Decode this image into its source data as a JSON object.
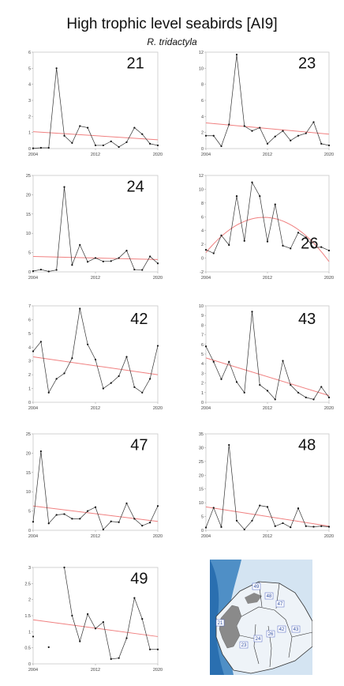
{
  "title": "High trophic level seabirds [AI9]",
  "subtitle": "R. tridactyla",
  "colors": {
    "data_line": "#333333",
    "trend_line": "#f08080",
    "axis": "#c8c8c8"
  },
  "chart_data": [
    {
      "type": "line",
      "label": "21",
      "x": [
        2004,
        2005,
        2006,
        2007,
        2008,
        2009,
        2010,
        2011,
        2012,
        2013,
        2014,
        2015,
        2016,
        2017,
        2018,
        2019,
        2020
      ],
      "values": [
        0.02,
        0.05,
        0.05,
        5.0,
        0.8,
        0.35,
        1.4,
        1.3,
        0.2,
        0.2,
        0.45,
        0.1,
        0.4,
        1.3,
        0.9,
        0.3,
        0.2
      ],
      "ylim": [
        0,
        6
      ],
      "yticks": [
        0,
        1,
        2,
        3,
        4,
        5,
        6
      ],
      "xticks": [
        2004,
        2012,
        2020
      ],
      "trend": "linear",
      "trend_ends": [
        1.05,
        0.55
      ]
    },
    {
      "type": "line",
      "label": "23",
      "x": [
        2004,
        2005,
        2006,
        2007,
        2008,
        2009,
        2010,
        2011,
        2012,
        2013,
        2014,
        2015,
        2016,
        2017,
        2018,
        2019,
        2020
      ],
      "values": [
        1.6,
        1.6,
        0.3,
        3.0,
        11.7,
        2.8,
        2.2,
        2.6,
        0.6,
        1.5,
        2.2,
        1.0,
        1.6,
        1.9,
        3.3,
        0.6,
        0.4
      ],
      "ylim": [
        0,
        12
      ],
      "yticks": [
        0,
        2,
        4,
        6,
        8,
        10,
        12
      ],
      "xticks": [
        2004,
        2012,
        2020
      ],
      "trend": "linear",
      "trend_ends": [
        3.2,
        1.8
      ]
    },
    {
      "type": "line",
      "label": "24",
      "x": [
        2004,
        2005,
        2006,
        2007,
        2008,
        2009,
        2010,
        2011,
        2012,
        2013,
        2014,
        2015,
        2016,
        2017,
        2018,
        2019,
        2020
      ],
      "values": [
        0.2,
        0.6,
        0.1,
        0.5,
        22.0,
        1.8,
        7.0,
        2.6,
        3.6,
        2.7,
        2.8,
        3.6,
        5.5,
        0.6,
        0.5,
        4.0,
        2.2
      ],
      "ylim": [
        0,
        25
      ],
      "yticks": [
        0,
        5,
        10,
        15,
        20,
        25
      ],
      "xticks": [
        2004,
        2012,
        2020
      ],
      "trend": "linear",
      "trend_ends": [
        4.0,
        3.2
      ]
    },
    {
      "type": "line",
      "label": "26",
      "x": [
        2004,
        2005,
        2006,
        2007,
        2008,
        2009,
        2010,
        2011,
        2012,
        2013,
        2014,
        2015,
        2016,
        2017,
        2018,
        2019,
        2020
      ],
      "values": [
        1.2,
        0.7,
        3.3,
        1.9,
        9.0,
        2.5,
        11.0,
        9.0,
        2.4,
        7.8,
        1.8,
        1.4,
        3.7,
        3.0,
        1.5,
        1.6,
        1.1
      ],
      "ylim": [
        -2,
        12
      ],
      "yticks": [
        -2,
        0,
        2,
        4,
        6,
        8,
        10,
        12
      ],
      "xticks": [
        2004,
        2012,
        2020
      ],
      "trend": "quadratic",
      "trend_quad": [
        0.8,
        5.9,
        -0.5
      ]
    },
    {
      "type": "line",
      "label": "42",
      "x": [
        2004,
        2005,
        2006,
        2007,
        2008,
        2009,
        2010,
        2011,
        2012,
        2013,
        2014,
        2015,
        2016,
        2017,
        2018,
        2019,
        2020
      ],
      "values": [
        3.7,
        4.4,
        0.7,
        1.7,
        2.1,
        3.2,
        6.8,
        4.2,
        3.1,
        1.0,
        1.4,
        1.9,
        3.3,
        1.1,
        0.7,
        1.7,
        4.1
      ],
      "ylim": [
        0,
        7
      ],
      "yticks": [
        0,
        1,
        2,
        3,
        4,
        5,
        6,
        7
      ],
      "xticks": [
        2004,
        2012,
        2020
      ],
      "trend": "linear",
      "trend_ends": [
        3.3,
        2.0
      ]
    },
    {
      "type": "line",
      "label": "43",
      "x": [
        2004,
        2005,
        2006,
        2007,
        2008,
        2009,
        2010,
        2011,
        2012,
        2013,
        2014,
        2015,
        2016,
        2017,
        2018,
        2019,
        2020
      ],
      "values": [
        5.8,
        4.2,
        2.4,
        4.2,
        2.1,
        1.0,
        9.4,
        1.8,
        1.2,
        0.3,
        4.3,
        1.8,
        1.0,
        0.5,
        0.3,
        1.6,
        0.5
      ],
      "ylim": [
        0,
        10
      ],
      "yticks": [
        0,
        1,
        2,
        3,
        4,
        5,
        6,
        7,
        8,
        9,
        10
      ],
      "xticks": [
        2004,
        2012,
        2020
      ],
      "trend": "linear",
      "trend_ends": [
        4.6,
        0.7
      ]
    },
    {
      "type": "line",
      "label": "47",
      "x": [
        2004,
        2005,
        2006,
        2007,
        2008,
        2009,
        2010,
        2011,
        2012,
        2013,
        2014,
        2015,
        2016,
        2017,
        2018,
        2019,
        2020
      ],
      "values": [
        2.2,
        20.5,
        1.8,
        4.0,
        4.2,
        3.0,
        3.0,
        5.0,
        6.0,
        0.2,
        2.3,
        2.1,
        7.0,
        3.0,
        1.2,
        2.0,
        6.3
      ],
      "ylim": [
        0,
        25
      ],
      "yticks": [
        0,
        5,
        10,
        15,
        20,
        25
      ],
      "xticks": [
        2004,
        2012,
        2020
      ],
      "trend": "linear",
      "trend_ends": [
        6.3,
        2.3
      ]
    },
    {
      "type": "line",
      "label": "48",
      "x": [
        2004,
        2005,
        2006,
        2007,
        2008,
        2009,
        2010,
        2011,
        2012,
        2013,
        2014,
        2015,
        2016,
        2017,
        2018,
        2019,
        2020
      ],
      "values": [
        1.0,
        8.2,
        1.2,
        31.0,
        3.5,
        0.3,
        3.5,
        9.0,
        8.5,
        1.5,
        2.6,
        1.1,
        8.0,
        1.5,
        1.3,
        1.5,
        1.3
      ],
      "ylim": [
        0,
        35
      ],
      "yticks": [
        0,
        5,
        10,
        15,
        20,
        25,
        30,
        35
      ],
      "xticks": [
        2004,
        2012,
        2020
      ],
      "trend": "linear",
      "trend_ends": [
        8.5,
        1.5
      ]
    },
    {
      "type": "line",
      "label": "49",
      "x": [
        2004,
        2006,
        2008,
        2009,
        2010,
        2011,
        2012,
        2013,
        2014,
        2015,
        2016,
        2017,
        2018,
        2019,
        2020
      ],
      "values": [
        0.85,
        0.52,
        3.0,
        1.5,
        0.7,
        1.55,
        1.1,
        1.3,
        0.15,
        0.18,
        0.8,
        2.05,
        1.4,
        0.45,
        0.45
      ],
      "ylim": [
        0,
        3
      ],
      "yticks": [
        0,
        0.5,
        1,
        1.5,
        2,
        2.5,
        3
      ],
      "xticks": [
        2004,
        2012,
        2020
      ],
      "trend": "linear",
      "trend_ends": [
        1.37,
        0.85
      ],
      "connected_from_index": 2
    }
  ],
  "map": {
    "areas": [
      "49",
      "48",
      "47",
      "21",
      "42",
      "26",
      "43",
      "23",
      "24"
    ],
    "colors": {
      "sea_deep": "#2a6fb0",
      "sea_light": "#d4e4f2",
      "land": "#8a8a8a",
      "ice": "#f4f6f8"
    }
  }
}
